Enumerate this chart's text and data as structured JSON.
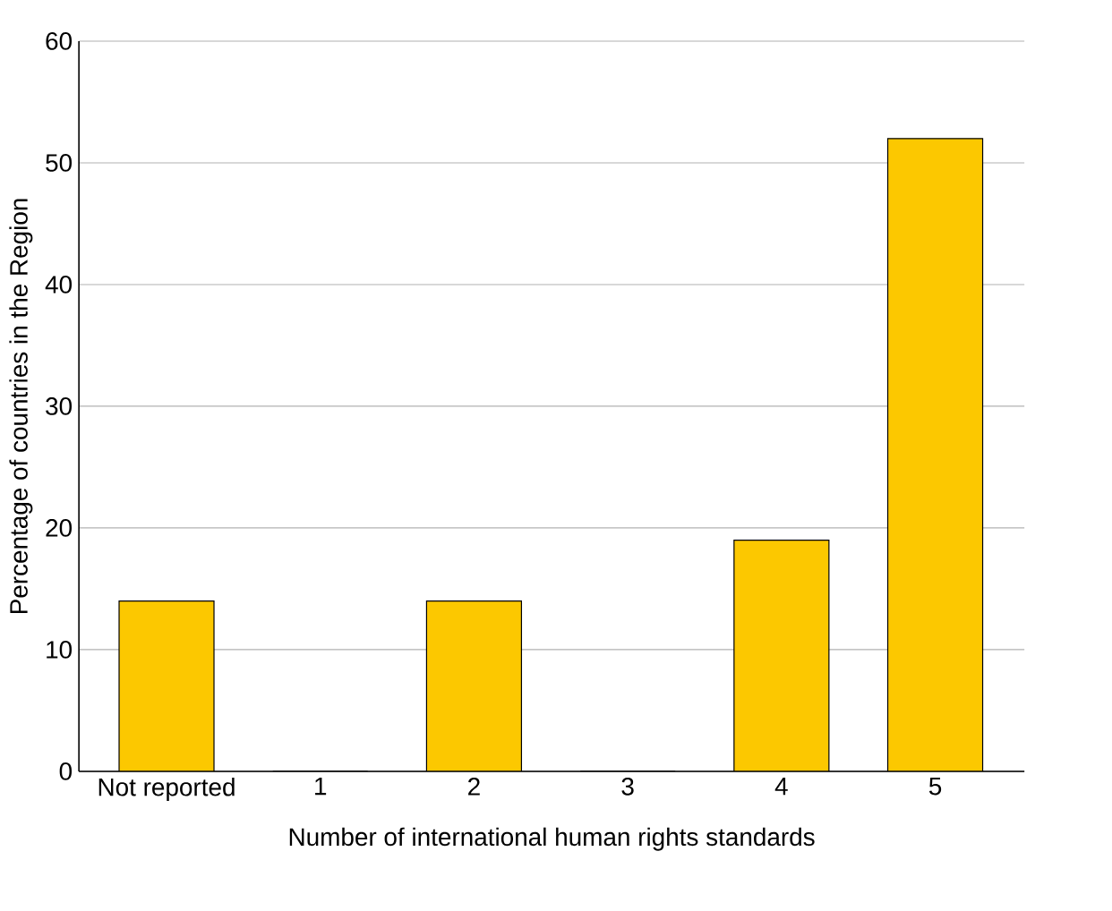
{
  "chart_data": {
    "type": "bar",
    "xlabel": "Number of international human rights standards",
    "ylabel": "Percentage of countries in the Region",
    "categories": [
      "Not reported",
      "1",
      "2",
      "3",
      "4",
      "5"
    ],
    "values": [
      14,
      0,
      14,
      0,
      19,
      52
    ],
    "color": "#fcc800",
    "ylim": [
      0,
      60
    ],
    "yticks": [
      0,
      10,
      20,
      30,
      40,
      50,
      60
    ],
    "grid": "y"
  }
}
